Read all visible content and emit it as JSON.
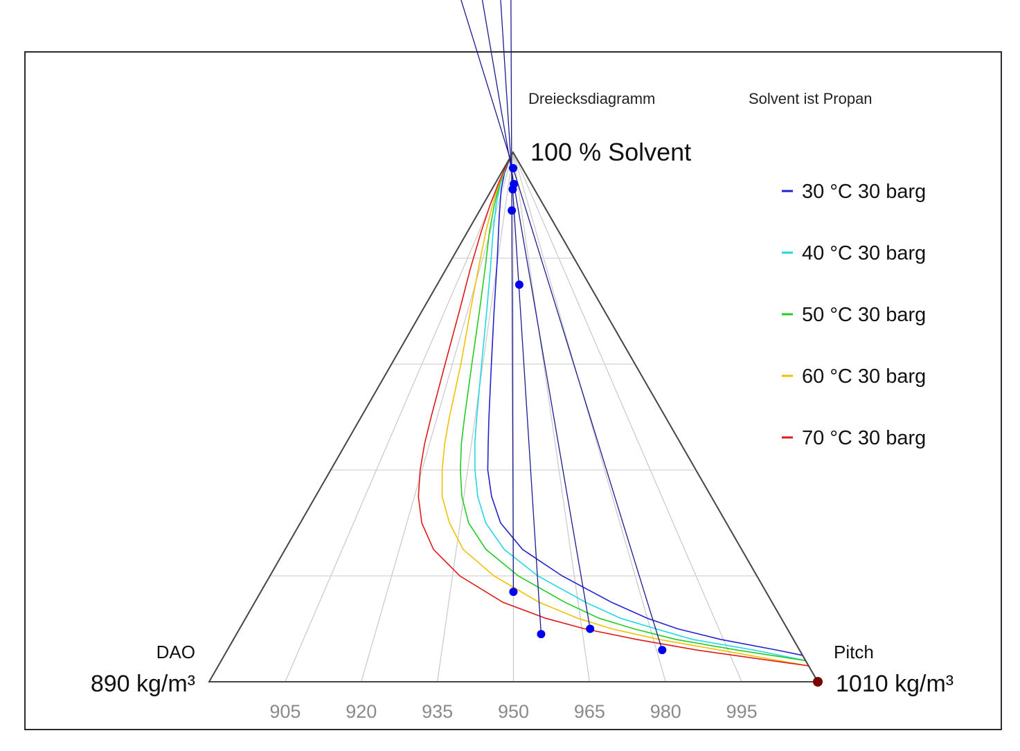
{
  "chart_data": {
    "type": "ternary",
    "title": "Dreiecksdiagramm",
    "subtitle": "Solvent ist Propan",
    "vertices": {
      "top": {
        "label": "100 % Solvent"
      },
      "left": {
        "name": "DAO",
        "density": "890 kg/m³"
      },
      "right": {
        "name": "Pitch",
        "density": "1010 kg/m³"
      }
    },
    "base_axis": {
      "min": 890,
      "max": 1010,
      "ticks": [
        905,
        920,
        935,
        950,
        965,
        980,
        995
      ],
      "tick_labels": [
        "905",
        "920",
        "935",
        "950",
        "965",
        "980",
        "995"
      ]
    },
    "solvent_gridlines": [
      0.2,
      0.4,
      0.6,
      0.8
    ],
    "series": [
      {
        "name": "30 °C 30 barg",
        "color": "#2020d0",
        "points": [
          [
            1,
            0.03
          ],
          [
            0.995,
            0.05
          ],
          [
            0.985,
            0.08
          ],
          [
            0.96,
            0.14
          ],
          [
            0.93,
            0.22
          ],
          [
            0.88,
            0.31
          ],
          [
            0.8,
            0.37
          ],
          [
            0.7,
            0.395
          ],
          [
            0.6,
            0.41
          ],
          [
            0.5,
            0.42
          ],
          [
            0.45,
            0.425
          ],
          [
            0.4,
            0.43
          ],
          [
            0.35,
            0.445
          ],
          [
            0.3,
            0.47
          ],
          [
            0.25,
            0.52
          ],
          [
            0.2,
            0.6
          ],
          [
            0.15,
            0.69
          ],
          [
            0.12,
            0.75
          ],
          [
            0.1,
            0.8
          ],
          [
            0.08,
            0.87
          ],
          [
            0.06,
            0.96
          ],
          [
            0.05,
            1
          ]
        ]
      },
      {
        "name": "40 °C 30 barg",
        "color": "#22d6e6",
        "points": [
          [
            1,
            0.03
          ],
          [
            0.99,
            0.05
          ],
          [
            0.97,
            0.09
          ],
          [
            0.94,
            0.15
          ],
          [
            0.9,
            0.22
          ],
          [
            0.85,
            0.28
          ],
          [
            0.78,
            0.33
          ],
          [
            0.7,
            0.355
          ],
          [
            0.6,
            0.37
          ],
          [
            0.5,
            0.38
          ],
          [
            0.45,
            0.385
          ],
          [
            0.4,
            0.395
          ],
          [
            0.35,
            0.41
          ],
          [
            0.3,
            0.435
          ],
          [
            0.25,
            0.48
          ],
          [
            0.2,
            0.55
          ],
          [
            0.15,
            0.64
          ],
          [
            0.12,
            0.7
          ],
          [
            0.1,
            0.76
          ],
          [
            0.08,
            0.82
          ],
          [
            0.06,
            0.92
          ],
          [
            0.04,
            1
          ]
        ]
      },
      {
        "name": "50 °C 30 barg",
        "color": "#22cc22",
        "points": [
          [
            1,
            0.03
          ],
          [
            0.99,
            0.05
          ],
          [
            0.97,
            0.08
          ],
          [
            0.94,
            0.13
          ],
          [
            0.9,
            0.19
          ],
          [
            0.85,
            0.24
          ],
          [
            0.78,
            0.29
          ],
          [
            0.7,
            0.315
          ],
          [
            0.6,
            0.33
          ],
          [
            0.5,
            0.34
          ],
          [
            0.45,
            0.345
          ],
          [
            0.4,
            0.355
          ],
          [
            0.35,
            0.37
          ],
          [
            0.3,
            0.395
          ],
          [
            0.25,
            0.44
          ],
          [
            0.2,
            0.51
          ],
          [
            0.15,
            0.6
          ],
          [
            0.12,
            0.66
          ],
          [
            0.1,
            0.72
          ],
          [
            0.08,
            0.79
          ],
          [
            0.06,
            0.89
          ],
          [
            0.04,
            1
          ]
        ]
      },
      {
        "name": "60 °C 30 barg",
        "color": "#f2c000",
        "points": [
          [
            1,
            0.03
          ],
          [
            0.99,
            0.04
          ],
          [
            0.97,
            0.07
          ],
          [
            0.94,
            0.11
          ],
          [
            0.9,
            0.16
          ],
          [
            0.85,
            0.2
          ],
          [
            0.78,
            0.24
          ],
          [
            0.7,
            0.265
          ],
          [
            0.6,
            0.285
          ],
          [
            0.5,
            0.29
          ],
          [
            0.45,
            0.295
          ],
          [
            0.4,
            0.305
          ],
          [
            0.35,
            0.32
          ],
          [
            0.3,
            0.35
          ],
          [
            0.25,
            0.39
          ],
          [
            0.2,
            0.46
          ],
          [
            0.15,
            0.55
          ],
          [
            0.12,
            0.62
          ],
          [
            0.1,
            0.68
          ],
          [
            0.08,
            0.76
          ],
          [
            0.06,
            0.86
          ],
          [
            0.03,
            1
          ]
        ]
      },
      {
        "name": "70 °C 30 barg",
        "color": "#e01818",
        "points": [
          [
            1,
            0.03
          ],
          [
            0.99,
            0.04
          ],
          [
            0.97,
            0.06
          ],
          [
            0.94,
            0.09
          ],
          [
            0.9,
            0.12
          ],
          [
            0.85,
            0.15
          ],
          [
            0.78,
            0.18
          ],
          [
            0.7,
            0.205
          ],
          [
            0.6,
            0.22
          ],
          [
            0.5,
            0.23
          ],
          [
            0.45,
            0.235
          ],
          [
            0.4,
            0.245
          ],
          [
            0.35,
            0.26
          ],
          [
            0.3,
            0.285
          ],
          [
            0.25,
            0.325
          ],
          [
            0.2,
            0.39
          ],
          [
            0.15,
            0.48
          ],
          [
            0.12,
            0.56
          ],
          [
            0.1,
            0.63
          ],
          [
            0.08,
            0.72
          ],
          [
            0.06,
            0.82
          ],
          [
            0.03,
            1
          ]
        ]
      }
    ],
    "tie_lines": [
      {
        "color": "#1a1a8c",
        "from": [
          0.97,
          0.5
        ],
        "to": [
          0.06,
          0.76
        ]
      },
      {
        "color": "#1a1a8c",
        "from": [
          0.89,
          0.48
        ],
        "to": [
          0.17,
          0.5
        ]
      },
      {
        "color": "#1a1a8c",
        "from": [
          0.93,
          0.49
        ],
        "to": [
          0.09,
          0.55
        ]
      },
      {
        "color": "#1a1a8c",
        "from": [
          0.94,
          0.52
        ],
        "to": [
          0.1,
          0.64
        ]
      }
    ],
    "tie_points": [
      [
        0.97,
        0.5
      ],
      [
        0.94,
        0.52
      ],
      [
        0.93,
        0.49
      ],
      [
        0.89,
        0.48
      ],
      [
        0.75,
        0.54
      ],
      [
        0.17,
        0.5
      ],
      [
        0.09,
        0.55
      ],
      [
        0.1,
        0.64
      ],
      [
        0.06,
        0.76
      ]
    ],
    "tie_point_color": "#0000ee",
    "marker": {
      "at": "right",
      "color": "#7a0000"
    },
    "legend_placement": "right"
  }
}
